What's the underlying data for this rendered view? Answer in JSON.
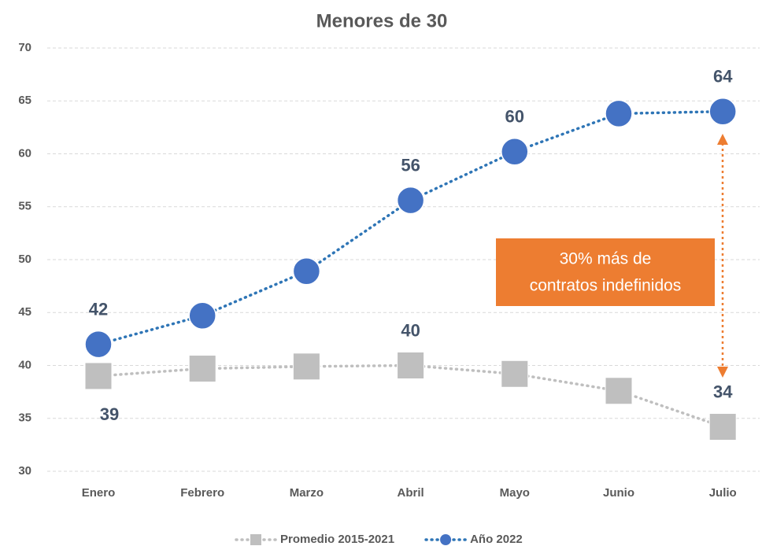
{
  "chart_data": {
    "type": "line",
    "title": "Menores de 30",
    "categories": [
      "Enero",
      "Febrero",
      "Marzo",
      "Abril",
      "Mayo",
      "Junio",
      "Julio"
    ],
    "series": [
      {
        "name": "Promedio 2015-2021",
        "color": "#bfbfbf",
        "marker": "square",
        "values": [
          39.0,
          39.7,
          39.9,
          40.0,
          39.2,
          37.6,
          34.2
        ],
        "value_labels": [
          "39",
          null,
          null,
          "40",
          null,
          null,
          "34"
        ]
      },
      {
        "name": "Año 2022",
        "color": "#4472c4",
        "marker": "circle",
        "values": [
          42.0,
          44.7,
          48.9,
          55.6,
          60.2,
          63.8,
          64.0
        ],
        "value_labels": [
          "42",
          null,
          null,
          "56",
          "60",
          null,
          "64"
        ]
      }
    ],
    "ylim": [
      30,
      70
    ],
    "yticks": [
      30,
      35,
      40,
      45,
      50,
      55,
      60,
      65,
      70
    ],
    "grid": true,
    "legend": "bottom",
    "annotation": [
      "30% más de",
      "contratos indefinidos"
    ]
  }
}
